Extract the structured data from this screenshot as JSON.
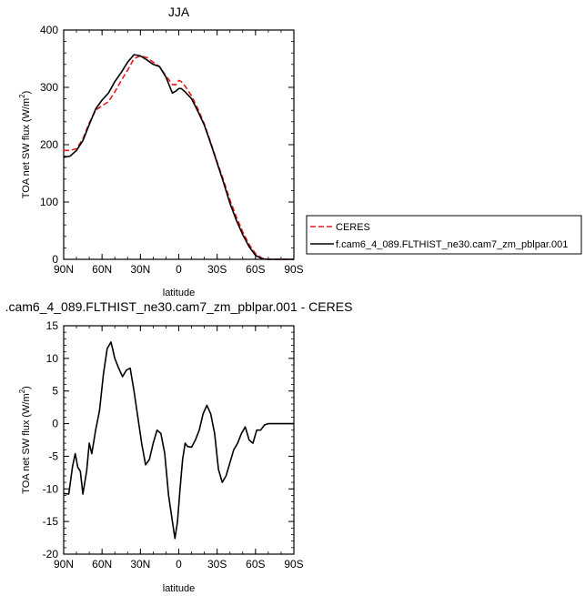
{
  "chart_data": [
    {
      "type": "line",
      "title": "JJA",
      "xlabel": "latitude",
      "ylabel_main": "TOA net SW flux (W/m",
      "ylabel_sup": "2",
      "ylabel_close": ")",
      "xlim": [
        90,
        -90
      ],
      "ylim": [
        0,
        400
      ],
      "xticks": [
        90,
        60,
        30,
        0,
        -30,
        -60,
        -90
      ],
      "xtick_labels": [
        "90N",
        "60N",
        "30N",
        "0",
        "30S",
        "60S",
        "90S"
      ],
      "yticks": [
        0,
        100,
        200,
        300,
        400
      ],
      "ytick_labels": [
        "0",
        "100",
        "200",
        "300",
        "400"
      ],
      "legend": {
        "placement": "right",
        "entries": [
          {
            "label": "CERES",
            "color": "#e8191c",
            "dash": true
          },
          {
            "label": "f.cam6_4_089.FLTHIST_ne30.cam7_zm_pblpar.001",
            "color": "#000000",
            "dash": false
          }
        ]
      },
      "series": [
        {
          "name": "CERES",
          "color": "#e8191c",
          "dash": true,
          "x": [
            90,
            85,
            80,
            75,
            70,
            65,
            60,
            55,
            50,
            45,
            40,
            35,
            30,
            25,
            20,
            15,
            10,
            5,
            2,
            0,
            -2,
            -5,
            -10,
            -15,
            -20,
            -25,
            -30,
            -35,
            -40,
            -45,
            -50,
            -55,
            -60,
            -65,
            -70,
            -75,
            -80,
            -85,
            -90
          ],
          "y": [
            190,
            190,
            193,
            210,
            238,
            260,
            268,
            275,
            292,
            312,
            330,
            350,
            355,
            352,
            344,
            336,
            320,
            305,
            305,
            312,
            310,
            302,
            285,
            262,
            236,
            204,
            170,
            138,
            104,
            74,
            48,
            26,
            10,
            2,
            0,
            0,
            0,
            0,
            0
          ]
        },
        {
          "name": "f.cam6_4_089.FLTHIST_ne30.cam7_zm_pblpar.001",
          "color": "#000000",
          "dash": false,
          "x": [
            90,
            85,
            80,
            75,
            70,
            65,
            60,
            55,
            50,
            45,
            40,
            35,
            30,
            25,
            20,
            15,
            10,
            5,
            2,
            0,
            -2,
            -5,
            -10,
            -15,
            -20,
            -25,
            -30,
            -35,
            -40,
            -45,
            -50,
            -55,
            -60,
            -65,
            -70,
            -75,
            -80,
            -85,
            -90
          ],
          "y": [
            178,
            180,
            190,
            207,
            235,
            262,
            278,
            290,
            310,
            326,
            344,
            357,
            355,
            348,
            340,
            336,
            318,
            290,
            294,
            298,
            298,
            292,
            280,
            258,
            234,
            202,
            168,
            134,
            98,
            68,
            43,
            22,
            7,
            1,
            0,
            0,
            0,
            0,
            0
          ]
        }
      ]
    },
    {
      "type": "line",
      "title": ".cam6_4_089.FLTHIST_ne30.cam7_zm_pblpar.001 - CERES",
      "xlabel": "latitude",
      "ylabel_main": "TOA net SW flux (W/m",
      "ylabel_sup": "2",
      "ylabel_close": ")",
      "xlim": [
        90,
        -90
      ],
      "ylim": [
        -20,
        15
      ],
      "xticks": [
        90,
        60,
        30,
        0,
        -30,
        -60,
        -90
      ],
      "xtick_labels": [
        "90N",
        "60N",
        "30N",
        "0",
        "30S",
        "60S",
        "90S"
      ],
      "yticks": [
        -20,
        -15,
        -10,
        -5,
        0,
        5,
        10,
        15
      ],
      "ytick_labels": [
        "-20",
        "-15",
        "-10",
        "-5",
        "0",
        "5",
        "10",
        "15"
      ],
      "series": [
        {
          "color": "#000000",
          "dash": false,
          "x": [
            90,
            86,
            83,
            81,
            79,
            77,
            75,
            72,
            70,
            68,
            65,
            62,
            59,
            56,
            53,
            50,
            47,
            44,
            41,
            38,
            35,
            32,
            29,
            26,
            23,
            20,
            17,
            14,
            11,
            8,
            5,
            3,
            1,
            -1,
            -3,
            -5,
            -7,
            -10,
            -13,
            -16,
            -19,
            -22,
            -25,
            -28,
            -31,
            -34,
            -37,
            -40,
            -43,
            -46,
            -49,
            -52,
            -55,
            -58,
            -61,
            -64,
            -67,
            -70,
            -73,
            -76,
            -80,
            -85,
            -90
          ],
          "y": [
            -10.7,
            -10.8,
            -6.5,
            -4.6,
            -6.7,
            -7.3,
            -10.8,
            -7.2,
            -3.0,
            -4.6,
            -1.0,
            2.0,
            7.5,
            11.5,
            12.5,
            10.0,
            8.5,
            7.2,
            8.2,
            8.5,
            5.0,
            1.0,
            -3.0,
            -6.3,
            -5.5,
            -3.0,
            -1.0,
            -1.5,
            -4.5,
            -11.0,
            -15.0,
            -17.6,
            -15.0,
            -10.0,
            -5.5,
            -3.0,
            -3.5,
            -3.6,
            -2.5,
            -1.0,
            1.5,
            2.8,
            1.5,
            -1.5,
            -7.0,
            -9.0,
            -8.0,
            -6.0,
            -4.0,
            -3.0,
            -1.5,
            -0.5,
            -2.5,
            -3.0,
            -1.0,
            -1.0,
            -0.2,
            0.0,
            0.0,
            0.0,
            0.0,
            0.0,
            0.0
          ]
        }
      ]
    }
  ]
}
